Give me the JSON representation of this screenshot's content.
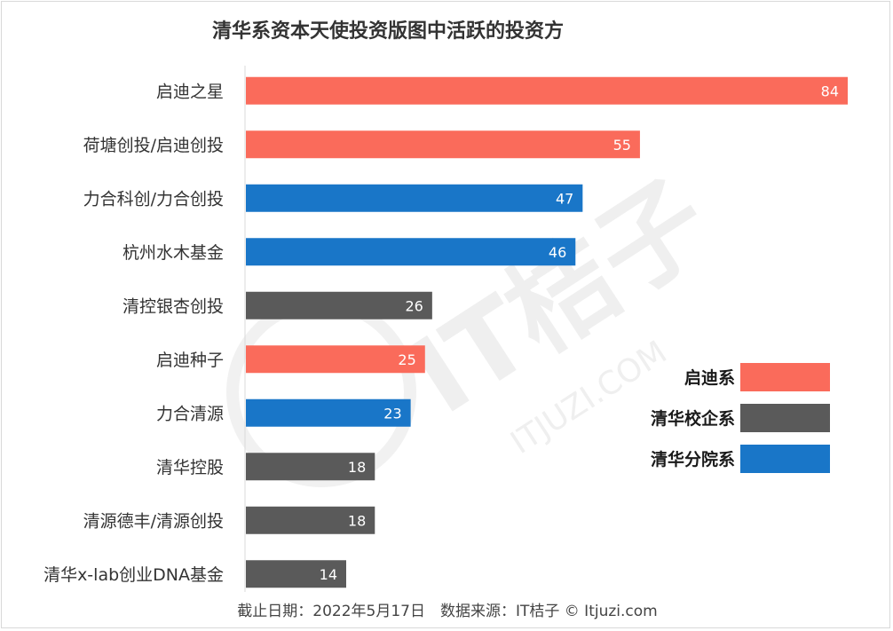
{
  "chart_data": {
    "type": "bar",
    "orientation": "horizontal",
    "title": "清华系资本天使投资版图中活跃的投资方",
    "categories": [
      "启迪之星",
      "荷塘创投/启迪创投",
      "力合科创/力合创投",
      "杭州水木基金",
      "清控银杏创投",
      "启迪种子",
      "力合清源",
      "清华控股",
      "清源德丰/清源创投",
      "清华x-lab创业DNA基金"
    ],
    "values": [
      84,
      55,
      47,
      46,
      26,
      25,
      23,
      18,
      18,
      14
    ],
    "groups": [
      "启迪系",
      "启迪系",
      "清华分院系",
      "清华分院系",
      "清华校企系",
      "启迪系",
      "清华分院系",
      "清华校企系",
      "清华校企系",
      "清华校企系"
    ],
    "xlim": [
      0,
      84
    ],
    "legend_position": "right",
    "legend": [
      {
        "name": "启迪系",
        "color": "#fa6b5b"
      },
      {
        "name": "清华校企系",
        "color": "#5a5a5a"
      },
      {
        "name": "清华分院系",
        "color": "#1976c8"
      }
    ],
    "footer": "截止日期：2022年5月17日　数据来源：IT桔子 © Itjuzi.com"
  },
  "watermark": {
    "brand": "IT桔子",
    "url": "ITJUZI.COM"
  }
}
